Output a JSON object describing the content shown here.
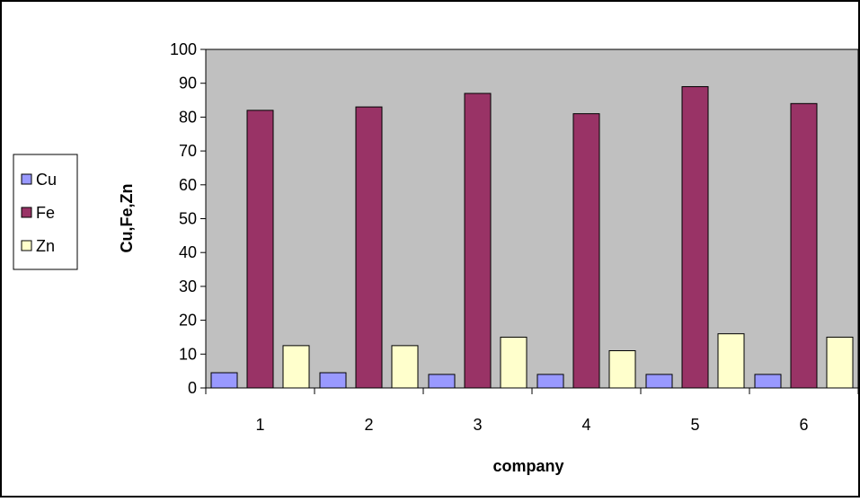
{
  "chart_data": {
    "type": "bar",
    "categories": [
      "1",
      "2",
      "3",
      "4",
      "5",
      "6"
    ],
    "series": [
      {
        "name": "Cu",
        "color": "#9999ff",
        "values": [
          4.5,
          4.5,
          4.0,
          4.0,
          4.0,
          4.0
        ]
      },
      {
        "name": "Fe",
        "color": "#993366",
        "values": [
          82,
          83,
          87,
          81,
          89,
          84
        ]
      },
      {
        "name": "Zn",
        "color": "#ffffcc",
        "values": [
          12.5,
          12.5,
          15,
          11,
          16,
          15
        ]
      }
    ],
    "xlabel": "company",
    "ylabel": "Cu,Fe,Zn",
    "ylim": [
      0,
      100
    ],
    "yticks": [
      "0",
      "10",
      "20",
      "30",
      "40",
      "50",
      "60",
      "70",
      "80",
      "90",
      "100"
    ],
    "plot_background": "#c0c0c0",
    "grid": false,
    "legend_position": "left"
  }
}
